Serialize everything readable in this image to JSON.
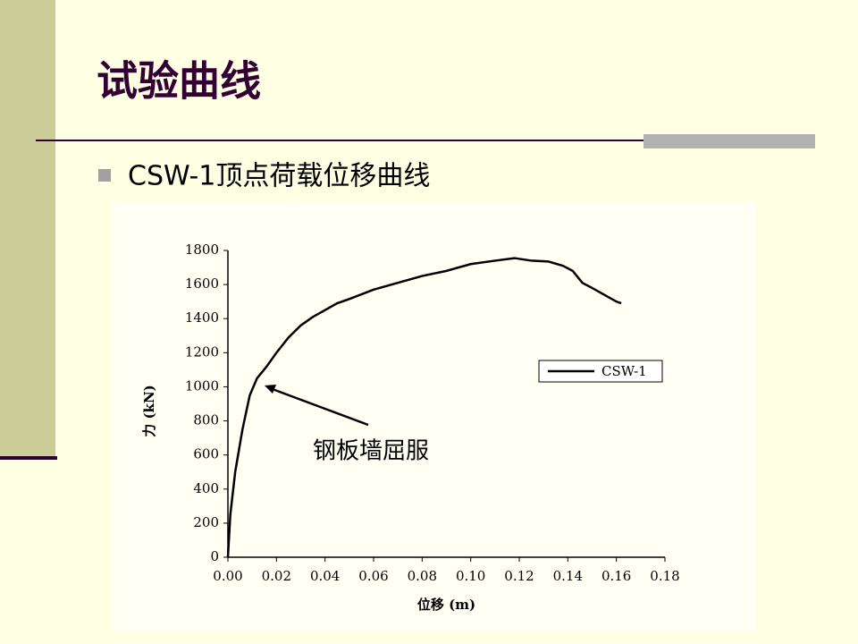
{
  "slide": {
    "title": "试验曲线",
    "bullet": "CSW-1顶点荷载位移曲线"
  },
  "chart_data": {
    "type": "line",
    "x_label": "位移 (m)",
    "y_label": "力 (kN)",
    "annotation": "钢板墙屈服",
    "x": [
      0,
      0.001,
      0.003,
      0.006,
      0.009,
      0.012,
      0.016,
      0.02,
      0.025,
      0.03,
      0.035,
      0.04,
      0.045,
      0.05,
      0.06,
      0.07,
      0.08,
      0.09,
      0.1,
      0.11,
      0.118,
      0.125,
      0.132,
      0.138,
      0.142,
      0.146,
      0.15,
      0.155,
      0.16,
      0.162
    ],
    "series": [
      {
        "name": "CSW-1",
        "color": "#000000",
        "values": [
          0,
          250,
          500,
          750,
          950,
          1050,
          1120,
          1200,
          1290,
          1360,
          1410,
          1450,
          1490,
          1515,
          1570,
          1610,
          1650,
          1680,
          1720,
          1740,
          1755,
          1740,
          1735,
          1710,
          1680,
          1610,
          1580,
          1540,
          1500,
          1490
        ]
      }
    ],
    "xlim": [
      0,
      0.18
    ],
    "xticks": [
      {
        "value": 0,
        "label": "0.00"
      },
      {
        "value": 0.02,
        "label": "0.02"
      },
      {
        "value": 0.04,
        "label": "0.04"
      },
      {
        "value": 0.06,
        "label": "0.06"
      },
      {
        "value": 0.08,
        "label": "0.08"
      },
      {
        "value": 0.1,
        "label": "0.10"
      },
      {
        "value": 0.12,
        "label": "0.12"
      },
      {
        "value": 0.14,
        "label": "0.14"
      },
      {
        "value": 0.16,
        "label": "0.16"
      },
      {
        "value": 0.18,
        "label": "0.18"
      }
    ],
    "ylim": [
      0,
      1800
    ],
    "yticks": [
      0,
      200,
      400,
      600,
      800,
      1000,
      1200,
      1400,
      1600,
      1800
    ],
    "legend": "right"
  }
}
